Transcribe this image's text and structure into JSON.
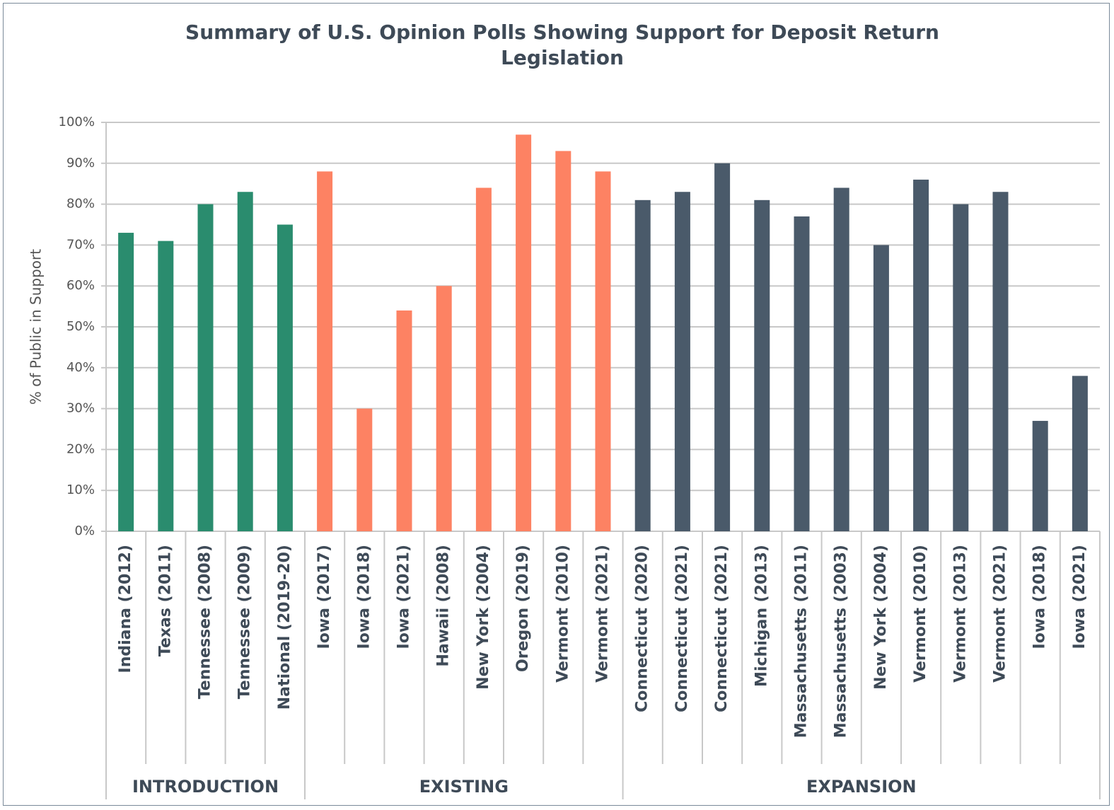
{
  "chart_data": {
    "type": "bar",
    "title": "Summary of U.S. Opinion Polls Showing Support for Deposit Return Legislation",
    "y_label": "% of Public in Support",
    "ylim": [
      0,
      100
    ],
    "yticks": [
      {
        "value": 0,
        "label": "0%"
      },
      {
        "value": 10,
        "label": "10%"
      },
      {
        "value": 20,
        "label": "20%"
      },
      {
        "value": 30,
        "label": "30%"
      },
      {
        "value": 40,
        "label": "40%"
      },
      {
        "value": 50,
        "label": "50%"
      },
      {
        "value": 60,
        "label": "60%"
      },
      {
        "value": 70,
        "label": "70%"
      },
      {
        "value": 80,
        "label": "80%"
      },
      {
        "value": 90,
        "label": "90%"
      },
      {
        "value": 100,
        "label": "100%"
      }
    ],
    "grid": true,
    "groups": [
      {
        "name": "INTRODUCTION",
        "color": "#2a8c6e",
        "categories": [
          "Indiana (2012)",
          "Texas (2011)",
          "Tennessee (2008)",
          "Tennessee (2009)",
          "National (2019-20)"
        ],
        "values": [
          73,
          71,
          80,
          83,
          75
        ]
      },
      {
        "name": "EXISTING",
        "color": "#fd8263",
        "categories": [
          "Iowa (2017)",
          "Iowa (2018)",
          "Iowa (2021)",
          "Hawaii (2008)",
          "New York (2004)",
          "Oregon (2019)",
          "Vermont (2010)",
          "Vermont (2021)"
        ],
        "values": [
          88,
          30,
          54,
          60,
          84,
          97,
          93,
          88
        ]
      },
      {
        "name": "EXPANSION",
        "color": "#4a5a6a",
        "categories": [
          "Connecticut (2020)",
          "Connecticut (2021)",
          "Connecticut (2021)",
          "Michigan (2013)",
          "Massachusetts (2011)",
          "Massachusetts (2003)",
          "New York (2004)",
          "Vermont (2010)",
          "Vermont (2013)",
          "Vermont (2021)",
          "Iowa (2018)",
          "Iowa (2021)"
        ],
        "values": [
          81,
          83,
          90,
          81,
          77,
          84,
          70,
          86,
          80,
          83,
          27,
          38
        ]
      }
    ]
  }
}
